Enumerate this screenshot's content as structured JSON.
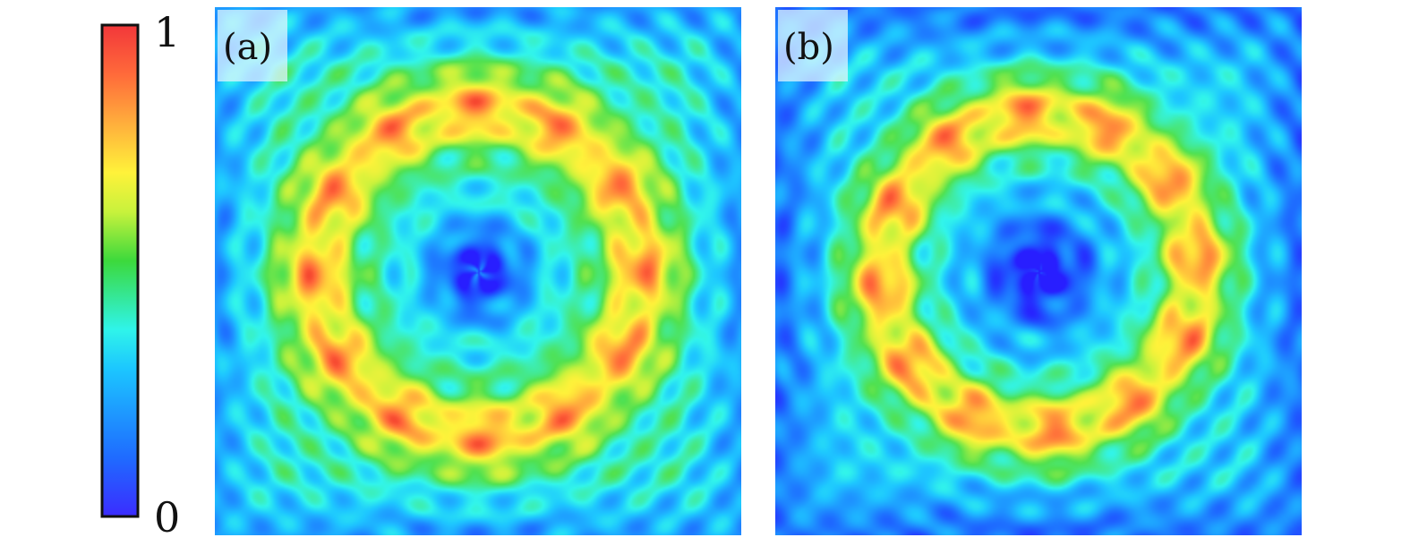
{
  "chart_data": [
    {
      "type": "colorbar",
      "colormap": "jet",
      "orientation": "vertical",
      "range": [
        0,
        1
      ],
      "tick_labels": {
        "max": "1",
        "min": "0"
      }
    },
    {
      "type": "heatmap",
      "panel_label": "(a)",
      "colormap": "jet",
      "value_range": [
        0,
        1
      ],
      "center_value": 0.08,
      "background_value": 0.4,
      "ring_value": 0.8,
      "peak_value": 1.0,
      "ring_radius_fraction": 0.31,
      "peak_count": 12,
      "central_arms": 4,
      "grid": false
    },
    {
      "type": "heatmap",
      "panel_label": "(b)",
      "colormap": "jet",
      "value_range": [
        0,
        1
      ],
      "center_value": 0.02,
      "background_value": 0.32,
      "ring_value": 0.8,
      "peak_value": 1.0,
      "ring_radius_fraction": 0.3,
      "peak_count": 12,
      "central_arms": 4,
      "grid": false
    }
  ],
  "colors": {
    "jet_stops": [
      "#00007f",
      "#0000ff",
      "#007fff",
      "#00ffff",
      "#7fff7f",
      "#ffff00",
      "#ff7f00",
      "#ff0000",
      "#7f0000"
    ],
    "panel_label_background": "#dff3ff"
  }
}
